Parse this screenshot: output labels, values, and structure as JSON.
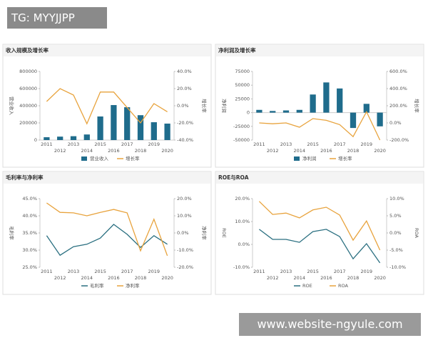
{
  "badge": "TG: MYYJJPP",
  "footer": "www.website-ngyule.com",
  "chart_data": [
    {
      "type": "bar",
      "title": "收入规模及增长率",
      "categories": [
        "2011",
        "2012",
        "2013",
        "2014",
        "2015",
        "2016",
        "2017",
        "2018",
        "2019",
        "2020"
      ],
      "series": [
        {
          "name": "营业收入",
          "type": "bar",
          "color": "#1f6c8c",
          "values": [
            33000,
            40000,
            45000,
            65000,
            275000,
            408000,
            383000,
            290000,
            208000,
            192000
          ]
        },
        {
          "name": "增长率",
          "type": "line",
          "axis": "y2",
          "color": "#e8a33d",
          "values": [
            5,
            20,
            12.5,
            -21,
            16,
            16,
            -2,
            -20,
            2.5,
            -7
          ]
        }
      ],
      "ylabel": "营业收入",
      "y2label": "增长率",
      "ylim": [
        0,
        800000
      ],
      "yticks": [
        0,
        200000,
        400000,
        600000,
        800000
      ],
      "y2lim": [
        -40,
        40
      ],
      "y2ticks": [
        {
          "value": -40,
          "label": "-40.0%"
        },
        {
          "value": -20,
          "label": "-20.0%"
        },
        {
          "value": 0,
          "label": "0.0%"
        },
        {
          "value": 20,
          "label": "20.0%"
        },
        {
          "value": 40,
          "label": "40.0%"
        }
      ]
    },
    {
      "type": "bar",
      "title": "净利润及增长率",
      "categories": [
        "2011",
        "2012",
        "2013",
        "2014",
        "2015",
        "2016",
        "2017",
        "2018",
        "2019",
        "2020"
      ],
      "series": [
        {
          "name": "净利润",
          "type": "bar",
          "color": "#1f6c8c",
          "values": [
            5000,
            3000,
            4000,
            5000,
            33000,
            55000,
            44000,
            -28000,
            16000,
            -25000
          ]
        },
        {
          "name": "增长率",
          "type": "line",
          "axis": "y2",
          "color": "#e8a33d",
          "values": [
            0,
            -10,
            0,
            -50,
            50,
            30,
            -20,
            -160,
            130,
            -200
          ]
        }
      ],
      "ylabel": "净利润",
      "y2label": "增长率",
      "ylim": [
        -50000,
        75000
      ],
      "yticks": [
        -50000,
        -25000,
        0,
        25000,
        50000,
        75000
      ],
      "y2lim": [
        -200,
        600
      ],
      "y2ticks": [
        {
          "value": -200,
          "label": "-200.0%"
        },
        {
          "value": 0,
          "label": "0.0%"
        },
        {
          "value": 200,
          "label": "200.0%"
        },
        {
          "value": 400,
          "label": "400.0%"
        },
        {
          "value": 600,
          "label": "600.0%"
        }
      ]
    },
    {
      "type": "line",
      "title": "毛利率与净利率",
      "categories": [
        "2011",
        "2012",
        "2013",
        "2014",
        "2015",
        "2016",
        "2017",
        "2018",
        "2019",
        "2020"
      ],
      "series": [
        {
          "name": "毛利率",
          "type": "line",
          "color": "#2a6f80",
          "values": [
            34.2,
            28.5,
            31,
            31.7,
            33.5,
            37.5,
            34.6,
            30.8,
            34.2,
            31.7
          ]
        },
        {
          "name": "净利率",
          "type": "line",
          "axis": "y2",
          "color": "#e8a33d",
          "values": [
            17.5,
            12,
            11.7,
            10,
            12,
            13.7,
            11.7,
            -10.4,
            8,
            -13.3
          ]
        }
      ],
      "ylabel": "毛利率",
      "y2label": "净利率",
      "ylim": [
        25,
        45
      ],
      "yticks": [
        {
          "value": 25,
          "label": "25.0%"
        },
        {
          "value": 30,
          "label": "30.0%"
        },
        {
          "value": 35,
          "label": "35.0%"
        },
        {
          "value": 40,
          "label": "40.0%"
        },
        {
          "value": 45,
          "label": "45.0%"
        }
      ],
      "y2lim": [
        -20,
        20
      ],
      "y2ticks": [
        {
          "value": -20,
          "label": "-20.0%"
        },
        {
          "value": -10,
          "label": "-10.0%"
        },
        {
          "value": 0,
          "label": "0.0%"
        },
        {
          "value": 10,
          "label": "10.0%"
        },
        {
          "value": 20,
          "label": "20.0%"
        }
      ]
    },
    {
      "type": "line",
      "title": "ROE与ROA",
      "categories": [
        "2011",
        "2012",
        "2013",
        "2014",
        "2015",
        "2016",
        "2017",
        "2018",
        "2019",
        "2020"
      ],
      "series": [
        {
          "name": "ROE",
          "type": "line",
          "color": "#2a6f80",
          "values": [
            6.6,
            2.2,
            2.2,
            0.9,
            5.6,
            6.6,
            3.4,
            -6.3,
            0.3,
            -8.1
          ]
        },
        {
          "name": "ROA",
          "type": "line",
          "axis": "y2",
          "color": "#e8a33d",
          "values": [
            9.2,
            5.4,
            5.8,
            4.4,
            6.7,
            7.5,
            5.2,
            -2.1,
            3.5,
            -5
          ]
        }
      ],
      "ylabel": "ROE",
      "y2label": "ROA",
      "ylim": [
        -10,
        20
      ],
      "yticks": [
        {
          "value": -10,
          "label": "-10.0%"
        },
        {
          "value": 0,
          "label": "0.0%"
        },
        {
          "value": 10,
          "label": "10.0%"
        },
        {
          "value": 20,
          "label": "20.0%"
        }
      ],
      "y2lim": [
        -10,
        10
      ],
      "y2ticks": [
        {
          "value": -10,
          "label": "-10.0%"
        },
        {
          "value": -5,
          "label": "-5.0%"
        },
        {
          "value": 0,
          "label": "0.0%"
        },
        {
          "value": 5,
          "label": "5.0%"
        },
        {
          "value": 10,
          "label": "10.0%"
        }
      ]
    }
  ]
}
